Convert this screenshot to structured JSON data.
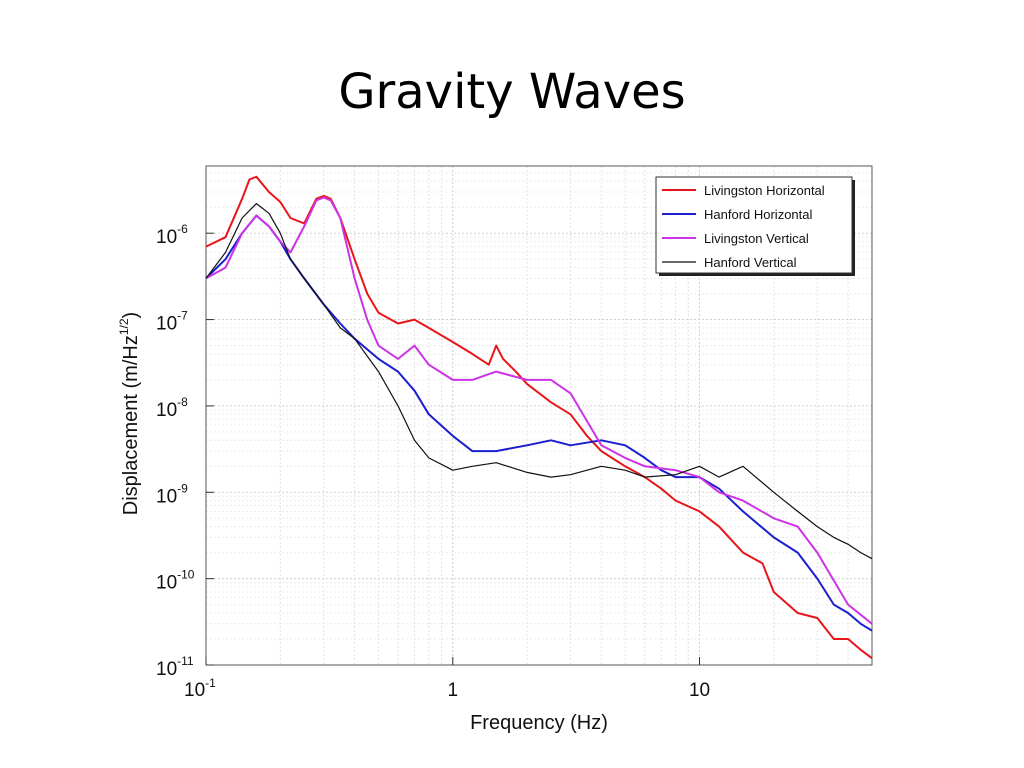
{
  "slide": {
    "title": "Gravity Waves"
  },
  "chart_data": {
    "type": "line",
    "xlabel": "Frequency (Hz)",
    "ylabel": "Displacement (m/Hz",
    "ylabel_sup": "1/2",
    "ylabel_close": ")",
    "x_scale": "log",
    "y_scale": "log",
    "xlim": [
      0.1,
      50
    ],
    "ylim": [
      1e-11,
      6e-06
    ],
    "grid": true,
    "legend_position": "top-right",
    "x_ticks": [
      {
        "value": 0.1,
        "base": "10",
        "exp": "-1"
      },
      {
        "value": 1,
        "base": "1",
        "exp": ""
      },
      {
        "value": 10,
        "base": "10",
        "exp": ""
      }
    ],
    "y_ticks": [
      {
        "value": 1e-06,
        "base": "10",
        "exp": "-6"
      },
      {
        "value": 1e-07,
        "base": "10",
        "exp": "-7"
      },
      {
        "value": 1e-08,
        "base": "10",
        "exp": "-8"
      },
      {
        "value": 1e-09,
        "base": "10",
        "exp": "-9"
      },
      {
        "value": 1e-10,
        "base": "10",
        "exp": "-10"
      },
      {
        "value": 1e-11,
        "base": "10",
        "exp": "-11"
      }
    ],
    "series": [
      {
        "name": "Livingston Horizontal",
        "color": "#e8161a",
        "x": [
          0.1,
          0.12,
          0.14,
          0.15,
          0.16,
          0.18,
          0.2,
          0.22,
          0.25,
          0.28,
          0.3,
          0.32,
          0.35,
          0.4,
          0.45,
          0.5,
          0.6,
          0.7,
          0.8,
          1.0,
          1.2,
          1.4,
          1.5,
          1.6,
          1.8,
          2.0,
          2.5,
          3.0,
          3.5,
          4.0,
          5.0,
          6.0,
          7.0,
          8.0,
          10,
          12,
          15,
          18,
          20,
          25,
          30,
          35,
          40,
          45,
          50
        ],
        "y": [
          7e-07,
          9e-07,
          2.5e-06,
          4.2e-06,
          4.5e-06,
          3e-06,
          2.3e-06,
          1.5e-06,
          1.3e-06,
          2.5e-06,
          2.7e-06,
          2.5e-06,
          1.5e-06,
          5e-07,
          2e-07,
          1.2e-07,
          9e-08,
          1e-07,
          8e-08,
          5.5e-08,
          4e-08,
          3e-08,
          5e-08,
          3.5e-08,
          2.5e-08,
          1.8e-08,
          1.1e-08,
          8e-09,
          4.5e-09,
          3e-09,
          2e-09,
          1.5e-09,
          1.1e-09,
          8e-10,
          6e-10,
          4e-10,
          2e-10,
          1.5e-10,
          7e-11,
          4e-11,
          3.5e-11,
          2e-11,
          2e-11,
          1.5e-11,
          1.2e-11
        ]
      },
      {
        "name": "Hanford Horizontal",
        "color": "#1a1fcf",
        "x": [
          0.1,
          0.12,
          0.14,
          0.16,
          0.18,
          0.2,
          0.22,
          0.25,
          0.3,
          0.35,
          0.4,
          0.5,
          0.6,
          0.7,
          0.8,
          1.0,
          1.2,
          1.5,
          2.0,
          2.5,
          3.0,
          4.0,
          5.0,
          6.0,
          7.0,
          8.0,
          10,
          12,
          15,
          20,
          25,
          30,
          35,
          40,
          45,
          50
        ],
        "y": [
          3e-07,
          5e-07,
          1e-06,
          1.6e-06,
          1.2e-06,
          8e-07,
          5e-07,
          3e-07,
          1.5e-07,
          9e-08,
          6e-08,
          3.5e-08,
          2.5e-08,
          1.5e-08,
          8e-09,
          4.5e-09,
          3e-09,
          3e-09,
          3.5e-09,
          4e-09,
          3.5e-09,
          4e-09,
          3.5e-09,
          2.5e-09,
          1.8e-09,
          1.5e-09,
          1.5e-09,
          1.1e-09,
          6e-10,
          3e-10,
          2e-10,
          1e-10,
          5e-11,
          4e-11,
          3e-11,
          2.5e-11
        ]
      },
      {
        "name": "Livingston Vertical",
        "color": "#cc33e6",
        "x": [
          0.1,
          0.12,
          0.14,
          0.16,
          0.18,
          0.2,
          0.22,
          0.25,
          0.28,
          0.3,
          0.32,
          0.35,
          0.4,
          0.45,
          0.5,
          0.6,
          0.7,
          0.8,
          1.0,
          1.2,
          1.5,
          2.0,
          2.5,
          3.0,
          4.0,
          5.0,
          6.0,
          8.0,
          10,
          12,
          15,
          20,
          25,
          30,
          40,
          50
        ],
        "y": [
          3e-07,
          4e-07,
          1e-06,
          1.6e-06,
          1.2e-06,
          8e-07,
          6e-07,
          1.2e-06,
          2.4e-06,
          2.6e-06,
          2.4e-06,
          1.5e-06,
          3e-07,
          1e-07,
          5e-08,
          3.5e-08,
          5e-08,
          3e-08,
          2e-08,
          2e-08,
          2.5e-08,
          2e-08,
          2e-08,
          1.4e-08,
          3.5e-09,
          2.5e-09,
          2e-09,
          1.8e-09,
          1.5e-09,
          1e-09,
          8e-10,
          5e-10,
          4e-10,
          2e-10,
          5e-11,
          3e-11
        ]
      },
      {
        "name": "Hanford Vertical",
        "color": "#111111",
        "x": [
          0.1,
          0.12,
          0.14,
          0.16,
          0.18,
          0.2,
          0.22,
          0.25,
          0.3,
          0.35,
          0.4,
          0.5,
          0.6,
          0.7,
          0.8,
          1.0,
          1.2,
          1.5,
          2.0,
          2.5,
          3.0,
          4.0,
          5.0,
          6.0,
          8.0,
          10,
          12,
          15,
          20,
          25,
          30,
          35,
          40,
          45,
          50
        ],
        "y": [
          3e-07,
          6e-07,
          1.5e-06,
          2.2e-06,
          1.7e-06,
          1e-06,
          5e-07,
          3e-07,
          1.5e-07,
          8e-08,
          6e-08,
          2.5e-08,
          1e-08,
          4e-09,
          2.5e-09,
          1.8e-09,
          2e-09,
          2.2e-09,
          1.7e-09,
          1.5e-09,
          1.6e-09,
          2e-09,
          1.8e-09,
          1.5e-09,
          1.6e-09,
          2e-09,
          1.5e-09,
          2e-09,
          1e-09,
          6e-10,
          4e-10,
          3e-10,
          2.5e-10,
          2e-10,
          1.7e-10
        ]
      }
    ]
  }
}
